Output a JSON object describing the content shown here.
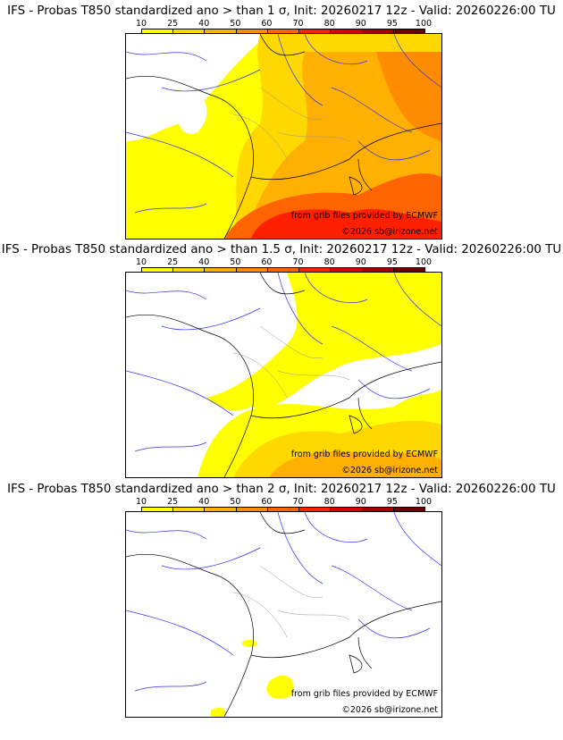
{
  "colorbar": {
    "ticks": [
      "10",
      "25",
      "40",
      "50",
      "60",
      "70",
      "80",
      "90",
      "95",
      "100"
    ],
    "colors": [
      "#ffff00",
      "#ffd800",
      "#ffb000",
      "#ff8c00",
      "#ff6400",
      "#ff2000",
      "#dd0000",
      "#a80000",
      "#6e0000"
    ]
  },
  "panels": [
    {
      "title": "IFS - Probas T850  standardized ano > than 1 σ, Init: 20260217 12z - Valid: 20260226:00 TU",
      "level": 3
    },
    {
      "title": "IFS - Probas T850  standardized ano > than 1.5 σ, Init: 20260217 12z - Valid: 20260226:00 TU",
      "level": 2
    },
    {
      "title": "IFS - Probas T850  standardized ano > than 2 σ, Init: 20260217 12z - Valid: 20260226:00 TU",
      "level": 1
    }
  ],
  "credits": {
    "source": "from grib files provided by ECMWF",
    "copyright": "©2026 sb@irizone.net"
  }
}
